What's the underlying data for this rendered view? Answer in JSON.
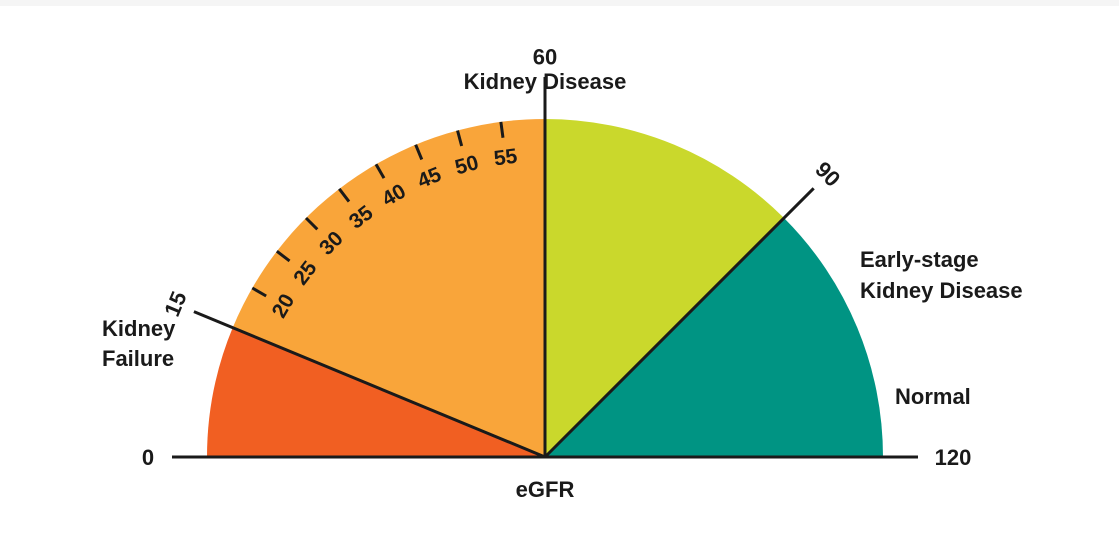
{
  "title": "Kidney Disease",
  "axis_label": "eGFR",
  "scale": {
    "min": 0,
    "max": 120,
    "min_label": "0",
    "max_label": "120"
  },
  "zones": [
    {
      "id": "kidney-failure",
      "label_lines": [
        "Kidney",
        "Failure"
      ],
      "from": 0,
      "to": 15,
      "color": "#f15f22"
    },
    {
      "id": "kidney-disease",
      "label_lines": [
        "Kidney Disease"
      ],
      "from": 15,
      "to": 60,
      "color": "#f9a53a"
    },
    {
      "id": "early-stage",
      "label_lines": [
        "Early-stage",
        "Kidney Disease"
      ],
      "from": 60,
      "to": 90,
      "color": "#cad82c"
    },
    {
      "id": "normal",
      "label_lines": [
        "Normal"
      ],
      "from": 90,
      "to": 120,
      "color": "#009483"
    }
  ],
  "boundary_labels": [
    "15",
    "60",
    "90"
  ],
  "boundary_values": [
    15,
    60,
    90
  ],
  "inner_ticks": [
    {
      "value": 20,
      "label": "20"
    },
    {
      "value": 25,
      "label": "25"
    },
    {
      "value": 30,
      "label": "30"
    },
    {
      "value": 35,
      "label": "35"
    },
    {
      "value": 40,
      "label": "40"
    },
    {
      "value": 45,
      "label": "45"
    },
    {
      "value": 50,
      "label": "50"
    },
    {
      "value": 55,
      "label": "55"
    }
  ],
  "colors": {
    "line": "#1a1a1a",
    "text": "#1a1a1a"
  }
}
